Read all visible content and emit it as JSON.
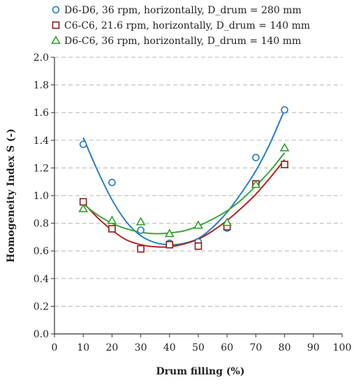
{
  "chart_data": {
    "type": "scatter",
    "title": "",
    "xlabel": "Drum filling (%)",
    "ylabel": "Homogeneity Index S (-)",
    "xlim": [
      0,
      100
    ],
    "ylim": [
      0,
      2.0
    ],
    "x_ticks": [
      "0",
      "10",
      "20",
      "30",
      "40",
      "50",
      "60",
      "70",
      "80",
      "90",
      "100"
    ],
    "y_ticks": [
      "0.0",
      "0.2",
      "0.4",
      "0.6",
      "0.8",
      "1.0",
      "1.2",
      "1.4",
      "1.6",
      "1.8",
      "2.0"
    ],
    "grid": "horizontal dashed",
    "legend_position": "top",
    "series": [
      {
        "name": "D6-D6, 36 rpm, horizontally, D_drum = 280 mm",
        "marker": "circle",
        "color": "#1f77b4",
        "x": [
          10,
          20,
          30,
          40,
          50,
          60,
          70,
          80
        ],
        "y": [
          1.37,
          1.095,
          0.75,
          0.655,
          0.665,
          0.765,
          1.275,
          1.62
        ],
        "fit_x": [
          10,
          15,
          20,
          25,
          30,
          35,
          40,
          45,
          50,
          55,
          60,
          65,
          70,
          75,
          80
        ],
        "fit_y": [
          1.42,
          1.18,
          0.97,
          0.81,
          0.71,
          0.66,
          0.645,
          0.655,
          0.69,
          0.77,
          0.88,
          1.02,
          1.18,
          1.38,
          1.62
        ]
      },
      {
        "name": "C6-C6, 21.6 rpm, horizontally, D_drum = 140 mm",
        "marker": "square",
        "color": "#8b1a1a",
        "x": [
          10,
          20,
          30,
          40,
          50,
          60,
          70,
          80
        ],
        "y": [
          0.955,
          0.76,
          0.615,
          0.645,
          0.635,
          0.775,
          1.085,
          1.225
        ],
        "fit_x": [
          10,
          15,
          20,
          25,
          30,
          35,
          40,
          45,
          50,
          55,
          60,
          65,
          70,
          75,
          80
        ],
        "fit_y": [
          0.95,
          0.84,
          0.75,
          0.68,
          0.645,
          0.63,
          0.63,
          0.65,
          0.685,
          0.745,
          0.82,
          0.91,
          1.01,
          1.13,
          1.26
        ]
      },
      {
        "name": "D6-C6, 36 rpm, horizontally, D_drum = 140 mm",
        "marker": "triangle",
        "color": "#2ca02c",
        "x": [
          10,
          20,
          30,
          40,
          50,
          60,
          70,
          80
        ],
        "y": [
          0.905,
          0.82,
          0.81,
          0.725,
          0.785,
          0.805,
          1.08,
          1.345
        ],
        "fit_x": [
          10,
          15,
          20,
          25,
          30,
          35,
          40,
          45,
          50,
          55,
          60,
          65,
          70,
          75,
          80
        ],
        "fit_y": [
          0.94,
          0.86,
          0.8,
          0.76,
          0.735,
          0.725,
          0.73,
          0.745,
          0.78,
          0.83,
          0.89,
          0.97,
          1.07,
          1.18,
          1.31
        ]
      }
    ]
  }
}
